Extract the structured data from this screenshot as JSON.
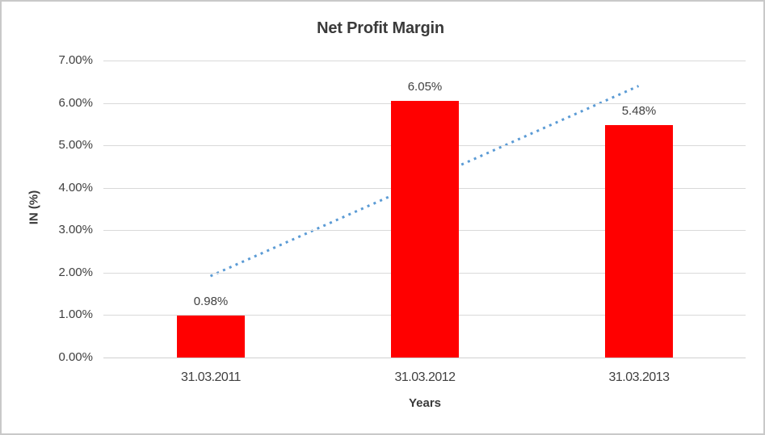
{
  "chart_data": {
    "type": "bar",
    "title": "Net Profit Margin",
    "xlabel": "Years",
    "ylabel": "IN (%)",
    "categories": [
      "31.03.2011",
      "31.03.2012",
      "31.03.2013"
    ],
    "values": [
      0.98,
      6.05,
      5.48
    ],
    "value_labels": [
      "0.98%",
      "6.05%",
      "5.48%"
    ],
    "ylim": [
      0,
      7
    ],
    "y_ticks": [
      {
        "value": 0,
        "label": "0.00%"
      },
      {
        "value": 1,
        "label": "1.00%"
      },
      {
        "value": 2,
        "label": "2.00%"
      },
      {
        "value": 3,
        "label": "3.00%"
      },
      {
        "value": 4,
        "label": "4.00%"
      },
      {
        "value": 5,
        "label": "5.00%"
      },
      {
        "value": 6,
        "label": "6.00%"
      },
      {
        "value": 7,
        "label": "7.00%"
      }
    ],
    "grid": "horizontal",
    "legend": "none",
    "bar_color": "#FF0000",
    "trendline": {
      "type": "linear",
      "style": "dotted",
      "color": "#5B9BD5",
      "start_value": 1.92,
      "end_value": 6.4
    },
    "colors": {
      "text": "#404040",
      "title_text": "#3A3A3A",
      "gridline": "#D9D9D9",
      "axis_line": "#D0D0D0",
      "frame_border": "#C9C9C9"
    }
  }
}
